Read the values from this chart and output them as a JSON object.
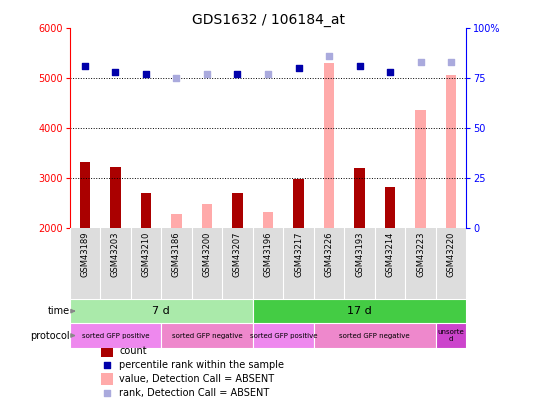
{
  "title": "GDS1632 / 106184_at",
  "samples": [
    "GSM43189",
    "GSM43203",
    "GSM43210",
    "GSM43186",
    "GSM43200",
    "GSM43207",
    "GSM43196",
    "GSM43217",
    "GSM43226",
    "GSM43193",
    "GSM43214",
    "GSM43223",
    "GSM43220"
  ],
  "count_values": [
    3330,
    3220,
    2700,
    null,
    null,
    2700,
    null,
    2980,
    null,
    3200,
    2820,
    null,
    null
  ],
  "absent_values": [
    null,
    null,
    null,
    2280,
    2480,
    null,
    2310,
    null,
    5310,
    null,
    null,
    4370,
    5070
  ],
  "rank_present": [
    81,
    78,
    77,
    null,
    null,
    77,
    null,
    80,
    null,
    81,
    78,
    null,
    null
  ],
  "rank_absent": [
    null,
    null,
    null,
    75,
    77,
    null,
    77,
    null,
    86,
    null,
    null,
    83,
    83
  ],
  "ylim": [
    2000,
    6000
  ],
  "yticks": [
    2000,
    3000,
    4000,
    5000,
    6000
  ],
  "y2ticks": [
    0,
    25,
    50,
    75,
    100
  ],
  "dotted_lines": [
    3000,
    4000,
    5000
  ],
  "time_groups": [
    {
      "label": "7 d",
      "start": 0,
      "end": 6,
      "color": "#aaeaaa"
    },
    {
      "label": "17 d",
      "start": 6,
      "end": 13,
      "color": "#44cc44"
    }
  ],
  "protocol_groups": [
    {
      "label": "sorted GFP positive",
      "start": 0,
      "end": 3,
      "color": "#ee88ee"
    },
    {
      "label": "sorted GFP negative",
      "start": 3,
      "end": 6,
      "color": "#ee88cc"
    },
    {
      "label": "sorted GFP positive",
      "start": 6,
      "end": 8,
      "color": "#ee88ee"
    },
    {
      "label": "sorted GFP negative",
      "start": 8,
      "end": 12,
      "color": "#ee88cc"
    },
    {
      "label": "unsorte\nd",
      "start": 12,
      "end": 13,
      "color": "#cc44cc"
    }
  ],
  "bar_color_present": "#aa0000",
  "bar_color_absent": "#ffaaaa",
  "dot_color_present": "#0000aa",
  "dot_color_absent": "#aaaadd",
  "bar_width": 0.35
}
